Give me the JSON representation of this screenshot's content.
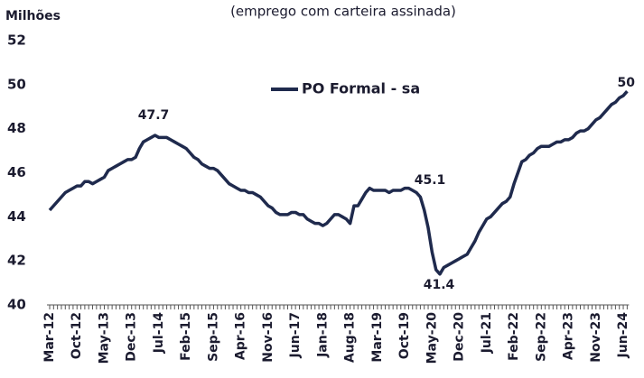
{
  "chart_data": {
    "type": "line",
    "subtitle": "(emprego com carteira assinada)",
    "y_label": "Milhões",
    "categories": [
      "Mar-12",
      null,
      null,
      null,
      null,
      null,
      null,
      "Oct-12",
      null,
      null,
      null,
      null,
      null,
      null,
      "May-13",
      null,
      null,
      null,
      null,
      null,
      null,
      "Dec-13",
      null,
      null,
      null,
      null,
      null,
      null,
      "Jul-14",
      null,
      null,
      null,
      null,
      null,
      null,
      "Feb-15",
      null,
      null,
      null,
      null,
      null,
      null,
      "Sep-15",
      null,
      null,
      null,
      null,
      null,
      null,
      "Apr-16",
      null,
      null,
      null,
      null,
      null,
      null,
      "Nov-16",
      null,
      null,
      null,
      null,
      null,
      null,
      "Jun-17",
      null,
      null,
      null,
      null,
      null,
      null,
      "Jan-18",
      null,
      null,
      null,
      null,
      null,
      null,
      "Aug-18",
      null,
      null,
      null,
      null,
      null,
      null,
      "Mar-19",
      null,
      null,
      null,
      null,
      null,
      null,
      "Oct-19",
      null,
      null,
      null,
      null,
      null,
      null,
      "May-20",
      null,
      null,
      null,
      null,
      null,
      null,
      "Dec-20",
      null,
      null,
      null,
      null,
      null,
      null,
      "Jul-21",
      null,
      null,
      null,
      null,
      null,
      null,
      "Feb-22",
      null,
      null,
      null,
      null,
      null,
      null,
      "Sep-22",
      null,
      null,
      null,
      null,
      null,
      null,
      "Apr-23",
      null,
      null,
      null,
      null,
      null,
      null,
      "Nov-23",
      null,
      null,
      null,
      null,
      null,
      null,
      "Jun-24",
      null
    ],
    "series": [
      {
        "name": "PO Formal - sa",
        "color": "#1f2a4d",
        "values": [
          44.3,
          44.5,
          44.7,
          44.9,
          45.1,
          45.2,
          45.3,
          45.4,
          45.4,
          45.6,
          45.6,
          45.5,
          45.6,
          45.7,
          45.8,
          46.1,
          46.2,
          46.3,
          46.4,
          46.5,
          46.6,
          46.6,
          46.7,
          47.1,
          47.4,
          47.5,
          47.6,
          47.7,
          47.6,
          47.6,
          47.6,
          47.5,
          47.4,
          47.3,
          47.2,
          47.1,
          46.9,
          46.7,
          46.6,
          46.4,
          46.3,
          46.2,
          46.2,
          46.1,
          45.9,
          45.7,
          45.5,
          45.4,
          45.3,
          45.2,
          45.2,
          45.1,
          45.1,
          45.0,
          44.9,
          44.7,
          44.5,
          44.4,
          44.2,
          44.1,
          44.1,
          44.1,
          44.2,
          44.2,
          44.1,
          44.1,
          43.9,
          43.8,
          43.7,
          43.7,
          43.6,
          43.7,
          43.9,
          44.1,
          44.1,
          44.0,
          43.9,
          43.7,
          44.5,
          44.5,
          44.8,
          45.1,
          45.3,
          45.2,
          45.2,
          45.2,
          45.2,
          45.1,
          45.2,
          45.2,
          45.2,
          45.3,
          45.3,
          45.2,
          45.1,
          44.9,
          44.3,
          43.5,
          42.4,
          41.6,
          41.4,
          41.7,
          41.8,
          41.9,
          42.0,
          42.1,
          42.2,
          42.3,
          42.6,
          42.9,
          43.3,
          43.6,
          43.9,
          44.0,
          44.2,
          44.4,
          44.6,
          44.7,
          44.9,
          45.5,
          46.0,
          46.5,
          46.6,
          46.8,
          46.9,
          47.1,
          47.2,
          47.2,
          47.2,
          47.3,
          47.4,
          47.4,
          47.5,
          47.5,
          47.6,
          47.8,
          47.9,
          47.9,
          48.0,
          48.2,
          48.4,
          48.5,
          48.7,
          48.9,
          49.1,
          49.2,
          49.4,
          49.5,
          49.7
        ]
      }
    ],
    "annotations": [
      "47.7",
      "45.1",
      "41.4",
      "50"
    ],
    "ylim": [
      40,
      52
    ],
    "yticks": [
      40,
      42,
      44,
      46,
      48,
      50,
      52
    ],
    "grid": false,
    "legend": "top"
  }
}
